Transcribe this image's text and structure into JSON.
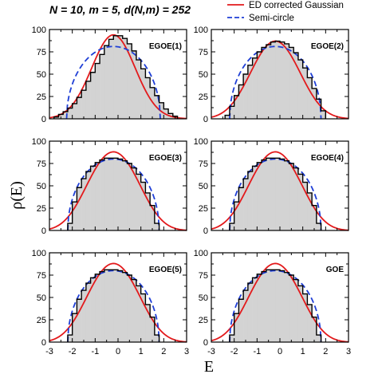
{
  "figure": {
    "title": "N = 10, m = 5, d(N,m) = 252",
    "xlabel": "E",
    "ylabel": "ρ(E)"
  },
  "legend": {
    "placement": "top-right",
    "entries": [
      {
        "name": "ED corrected Gaussian",
        "color": "#e31a1c",
        "style": "solid"
      },
      {
        "name": "Semi-circle",
        "color": "#1f3fd6",
        "style": "dashed"
      }
    ]
  },
  "chart_data": [
    {
      "type": "bar",
      "panel": "EGOE(1)",
      "xlim": [
        -3,
        3
      ],
      "ylim": [
        0,
        100
      ],
      "x_ticks": [
        -3,
        -2,
        -1,
        0,
        1,
        2,
        3
      ],
      "y_ticks": [
        0,
        25,
        50,
        75,
        100
      ],
      "bin_edges": [
        -2.8,
        -2.6,
        -2.4,
        -2.2,
        -2.0,
        -1.8,
        -1.6,
        -1.4,
        -1.2,
        -1.0,
        -0.8,
        -0.6,
        -0.4,
        -0.2,
        0.0,
        0.2,
        0.4,
        0.6,
        0.8,
        1.0,
        1.2,
        1.4,
        1.6,
        1.8,
        2.0,
        2.2,
        2.4,
        2.6
      ],
      "histogram": [
        2,
        5,
        8,
        12,
        17,
        24,
        32,
        42,
        52,
        62,
        72,
        82,
        89,
        93,
        93,
        90,
        84,
        76,
        66,
        56,
        46,
        35,
        26,
        18,
        11,
        6,
        3
      ],
      "gaussian_center": -0.2,
      "gaussian_width": 0.95,
      "gaussian_peak": 94,
      "gaussian_excess": 0.0,
      "semicircle_center": -0.2,
      "semicircle_radius": 2.05,
      "semicircle_peak": 81
    },
    {
      "type": "bar",
      "panel": "EGOE(2)",
      "xlim": [
        -3,
        3
      ],
      "ylim": [
        0,
        100
      ],
      "x_ticks": [
        -3,
        -2,
        -1,
        0,
        1,
        2,
        3
      ],
      "y_ticks": [
        0,
        25,
        50,
        75,
        100
      ],
      "bin_edges": [
        -2.4,
        -2.2,
        -2.0,
        -1.8,
        -1.6,
        -1.4,
        -1.2,
        -1.0,
        -0.8,
        -0.6,
        -0.4,
        -0.2,
        0.0,
        0.2,
        0.4,
        0.6,
        0.8,
        1.0,
        1.2,
        1.4,
        1.6,
        1.8,
        2.0
      ],
      "histogram": [
        4,
        14,
        26,
        38,
        50,
        60,
        68,
        75,
        80,
        83,
        86,
        87,
        86,
        84,
        80,
        74,
        66,
        57,
        46,
        34,
        22,
        9
      ],
      "gaussian_center": -0.2,
      "gaussian_width": 1.02,
      "gaussian_peak": 87,
      "gaussian_excess": -0.2,
      "semicircle_center": -0.2,
      "semicircle_radius": 2.0,
      "semicircle_peak": 81
    },
    {
      "type": "bar",
      "panel": "EGOE(3)",
      "xlim": [
        -3,
        3
      ],
      "ylim": [
        0,
        100
      ],
      "x_ticks": [
        -3,
        -2,
        -1,
        0,
        1,
        2,
        3
      ],
      "y_ticks": [
        0,
        25,
        50,
        75,
        100
      ],
      "bin_edges": [
        -2.2,
        -2.0,
        -1.8,
        -1.6,
        -1.4,
        -1.2,
        -1.0,
        -0.8,
        -0.6,
        -0.4,
        -0.2,
        0.0,
        0.2,
        0.4,
        0.6,
        0.8,
        1.0,
        1.2,
        1.4,
        1.6,
        1.8
      ],
      "histogram": [
        8,
        32,
        48,
        58,
        66,
        72,
        76,
        79,
        81,
        81,
        81,
        80,
        78,
        75,
        70,
        63,
        54,
        42,
        28,
        8
      ],
      "gaussian_center": -0.2,
      "gaussian_width": 1.02,
      "gaussian_peak": 88,
      "gaussian_excess": -0.4,
      "semicircle_center": -0.2,
      "semicircle_radius": 2.0,
      "semicircle_peak": 80
    },
    {
      "type": "bar",
      "panel": "EGOE(4)",
      "xlim": [
        -3,
        3
      ],
      "ylim": [
        0,
        100
      ],
      "x_ticks": [
        -3,
        -2,
        -1,
        0,
        1,
        2,
        3
      ],
      "y_ticks": [
        0,
        25,
        50,
        75,
        100
      ],
      "bin_edges": [
        -2.2,
        -2.0,
        -1.8,
        -1.6,
        -1.4,
        -1.2,
        -1.0,
        -0.8,
        -0.6,
        -0.4,
        -0.2,
        0.0,
        0.2,
        0.4,
        0.6,
        0.8,
        1.0,
        1.2,
        1.4,
        1.6,
        1.8
      ],
      "histogram": [
        8,
        32,
        48,
        58,
        66,
        72,
        76,
        79,
        81,
        81,
        81,
        80,
        78,
        75,
        70,
        63,
        54,
        42,
        28,
        8
      ],
      "gaussian_center": -0.2,
      "gaussian_width": 1.02,
      "gaussian_peak": 88,
      "gaussian_excess": -0.4,
      "semicircle_center": -0.2,
      "semicircle_radius": 2.0,
      "semicircle_peak": 80
    },
    {
      "type": "bar",
      "panel": "EGOE(5)",
      "xlim": [
        -3,
        3
      ],
      "ylim": [
        0,
        100
      ],
      "x_ticks": [
        -3,
        -2,
        -1,
        0,
        1,
        2,
        3
      ],
      "y_ticks": [
        0,
        25,
        50,
        75,
        100
      ],
      "bin_edges": [
        -2.2,
        -2.0,
        -1.8,
        -1.6,
        -1.4,
        -1.2,
        -1.0,
        -0.8,
        -0.6,
        -0.4,
        -0.2,
        0.0,
        0.2,
        0.4,
        0.6,
        0.8,
        1.0,
        1.2,
        1.4,
        1.6,
        1.8
      ],
      "histogram": [
        8,
        32,
        48,
        58,
        66,
        72,
        76,
        79,
        81,
        81,
        81,
        80,
        78,
        75,
        70,
        63,
        54,
        42,
        28,
        8
      ],
      "gaussian_center": -0.2,
      "gaussian_width": 1.02,
      "gaussian_peak": 88,
      "gaussian_excess": -0.4,
      "semicircle_center": -0.2,
      "semicircle_radius": 2.0,
      "semicircle_peak": 80
    },
    {
      "type": "bar",
      "panel": "GOE",
      "xlim": [
        -3,
        3
      ],
      "ylim": [
        0,
        100
      ],
      "x_ticks": [
        -3,
        -2,
        -1,
        0,
        1,
        2,
        3
      ],
      "y_ticks": [
        0,
        25,
        50,
        75,
        100
      ],
      "bin_edges": [
        -2.2,
        -2.0,
        -1.8,
        -1.6,
        -1.4,
        -1.2,
        -1.0,
        -0.8,
        -0.6,
        -0.4,
        -0.2,
        0.0,
        0.2,
        0.4,
        0.6,
        0.8,
        1.0,
        1.2,
        1.4,
        1.6,
        1.8
      ],
      "histogram": [
        8,
        32,
        48,
        58,
        66,
        72,
        76,
        79,
        81,
        81,
        81,
        80,
        78,
        75,
        70,
        63,
        54,
        42,
        28,
        8
      ],
      "gaussian_center": -0.2,
      "gaussian_width": 1.02,
      "gaussian_peak": 88,
      "gaussian_excess": -0.4,
      "semicircle_center": -0.2,
      "semicircle_radius": 2.0,
      "semicircle_peak": 80
    }
  ]
}
